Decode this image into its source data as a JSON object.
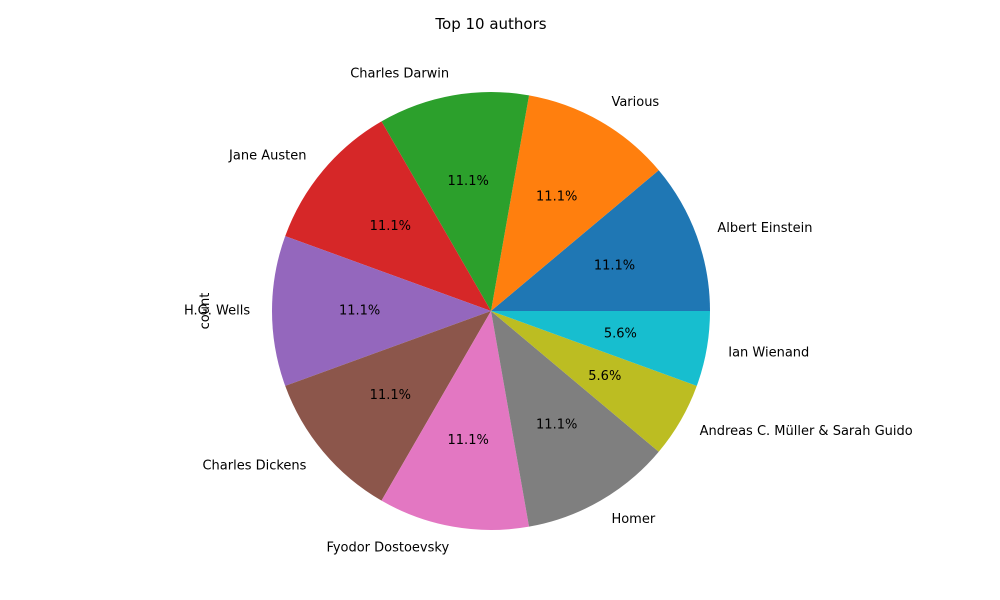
{
  "chart_data": {
    "type": "pie",
    "title": "Top 10 authors",
    "ylabel": "count",
    "categories": [
      "Albert Einstein",
      "Various",
      "Charles Darwin",
      "Jane Austen",
      "H.G. Wells",
      "Charles Dickens",
      "Fyodor Dostoevsky",
      "Homer",
      "Andreas C. Müller & Sarah Guido",
      "Ian Wienand"
    ],
    "values": [
      2,
      2,
      2,
      2,
      2,
      2,
      2,
      2,
      1,
      1
    ],
    "percent_labels": [
      "11.1%",
      "11.1%",
      "11.1%",
      "11.1%",
      "11.1%",
      "11.1%",
      "11.1%",
      "11.1%",
      "5.6%",
      "5.6%"
    ],
    "colors": [
      "#1f77b4",
      "#ff7f0e",
      "#2ca02c",
      "#d62728",
      "#9467bd",
      "#8c564b",
      "#e377c2",
      "#7f7f7f",
      "#bcbd22",
      "#17becf"
    ],
    "legend": "none"
  }
}
